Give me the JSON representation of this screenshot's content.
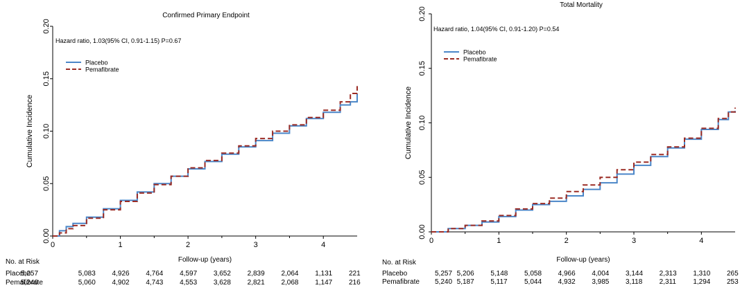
{
  "chart_data": [
    {
      "type": "line",
      "title": "Confirmed Primary Endpoint",
      "xlabel": "Follow-up (years)",
      "ylabel": "Cumulative Incidence",
      "xlim": [
        0,
        4.5
      ],
      "ylim": [
        0,
        0.2
      ],
      "x_ticks": [
        0,
        1,
        2,
        3,
        4
      ],
      "y_ticks": [
        "0.00",
        "0.05",
        "0.10",
        "0.15",
        "0.20"
      ],
      "grid": false,
      "legend_position": "top-left",
      "annotation": "Hazard ratio, 1.03(95% CI, 0.91-1.15) P=0.67",
      "series": [
        {
          "name": "Placebo",
          "color": "#4a86c8",
          "style": "solid",
          "x": [
            0,
            0.1,
            0.2,
            0.3,
            0.5,
            0.75,
            1.0,
            1.25,
            1.5,
            1.75,
            2.0,
            2.25,
            2.5,
            2.75,
            3.0,
            3.25,
            3.5,
            3.75,
            4.0,
            4.25,
            4.4,
            4.5,
            4.5
          ],
          "values": [
            0,
            0.005,
            0.009,
            0.012,
            0.018,
            0.026,
            0.034,
            0.042,
            0.05,
            0.057,
            0.064,
            0.071,
            0.078,
            0.085,
            0.091,
            0.098,
            0.105,
            0.112,
            0.118,
            0.125,
            0.128,
            0.13,
            0.136
          ]
        },
        {
          "name": "Pemafibrate",
          "color": "#9b2b24",
          "style": "dashed",
          "x": [
            0,
            0.1,
            0.2,
            0.3,
            0.5,
            0.75,
            1.0,
            1.25,
            1.5,
            1.75,
            2.0,
            2.25,
            2.5,
            2.75,
            3.0,
            3.25,
            3.5,
            3.75,
            4.0,
            4.25,
            4.4,
            4.5
          ],
          "values": [
            0,
            0.003,
            0.007,
            0.01,
            0.017,
            0.025,
            0.033,
            0.041,
            0.049,
            0.057,
            0.065,
            0.072,
            0.079,
            0.086,
            0.093,
            0.1,
            0.106,
            0.113,
            0.12,
            0.128,
            0.136,
            0.143
          ]
        }
      ],
      "risk_table": {
        "label": "No. at Risk",
        "x": [
          0,
          0.5,
          1,
          1.5,
          2,
          2.5,
          3,
          3.5,
          4,
          4.5
        ],
        "rows": [
          {
            "name": "Placebo",
            "values": [
              "5,257",
              "5,083",
              "4,926",
              "4,764",
              "4,597",
              "3,652",
              "2,839",
              "2,064",
              "1,131",
              "221"
            ]
          },
          {
            "name": "Pemafibrate",
            "values": [
              "5,240",
              "5,060",
              "4,902",
              "4,743",
              "4,553",
              "3,628",
              "2,821",
              "2,068",
              "1,147",
              "216"
            ]
          }
        ]
      }
    },
    {
      "type": "line",
      "title": "Total Mortality",
      "xlabel": "Follow-up (years)",
      "ylabel": "Cumulative Incidence",
      "xlim": [
        0,
        4.5
      ],
      "ylim": [
        0,
        0.2
      ],
      "x_ticks": [
        0,
        1,
        2,
        3,
        4
      ],
      "y_ticks": [
        "0.00",
        "0.05",
        "0.10",
        "0.15",
        "0.20"
      ],
      "grid": false,
      "legend_position": "top-left",
      "annotation": "Hazard ratio, 1.04(95% CI, 0.91-1.20) P=0.54",
      "series": [
        {
          "name": "Placebo",
          "color": "#4a86c8",
          "style": "solid",
          "x": [
            0,
            0.25,
            0.5,
            0.75,
            1.0,
            1.25,
            1.5,
            1.75,
            2.0,
            2.25,
            2.5,
            2.75,
            3.0,
            3.25,
            3.5,
            3.75,
            4.0,
            4.25,
            4.4,
            4.5
          ],
          "values": [
            0,
            0.003,
            0.006,
            0.009,
            0.014,
            0.02,
            0.025,
            0.028,
            0.033,
            0.039,
            0.045,
            0.053,
            0.061,
            0.069,
            0.077,
            0.085,
            0.094,
            0.103,
            0.11,
            0.111
          ]
        },
        {
          "name": "Pemafibrate",
          "color": "#9b2b24",
          "style": "dashed",
          "x": [
            0,
            0.25,
            0.5,
            0.75,
            1.0,
            1.25,
            1.5,
            1.75,
            2.0,
            2.25,
            2.5,
            2.75,
            3.0,
            3.25,
            3.5,
            3.75,
            4.0,
            4.25,
            4.4,
            4.5
          ],
          "values": [
            0,
            0.003,
            0.006,
            0.01,
            0.015,
            0.021,
            0.026,
            0.031,
            0.037,
            0.043,
            0.05,
            0.057,
            0.064,
            0.071,
            0.078,
            0.086,
            0.095,
            0.104,
            0.11,
            0.114
          ]
        }
      ],
      "risk_table": {
        "label": "No. at Risk",
        "x": [
          0,
          0.5,
          1,
          1.5,
          2,
          2.5,
          3,
          3.5,
          4,
          4.5
        ],
        "rows": [
          {
            "name": "Placebo",
            "values": [
              "5,257",
              "5,206",
              "5,148",
              "5,058",
              "4,966",
              "4,004",
              "3,144",
              "2,313",
              "1,310",
              "265"
            ]
          },
          {
            "name": "Pemafibrate",
            "values": [
              "5,240",
              "5,187",
              "5,117",
              "5,044",
              "4,932",
              "3,985",
              "3,118",
              "2,311",
              "1,294",
              "253"
            ]
          }
        ]
      }
    }
  ]
}
